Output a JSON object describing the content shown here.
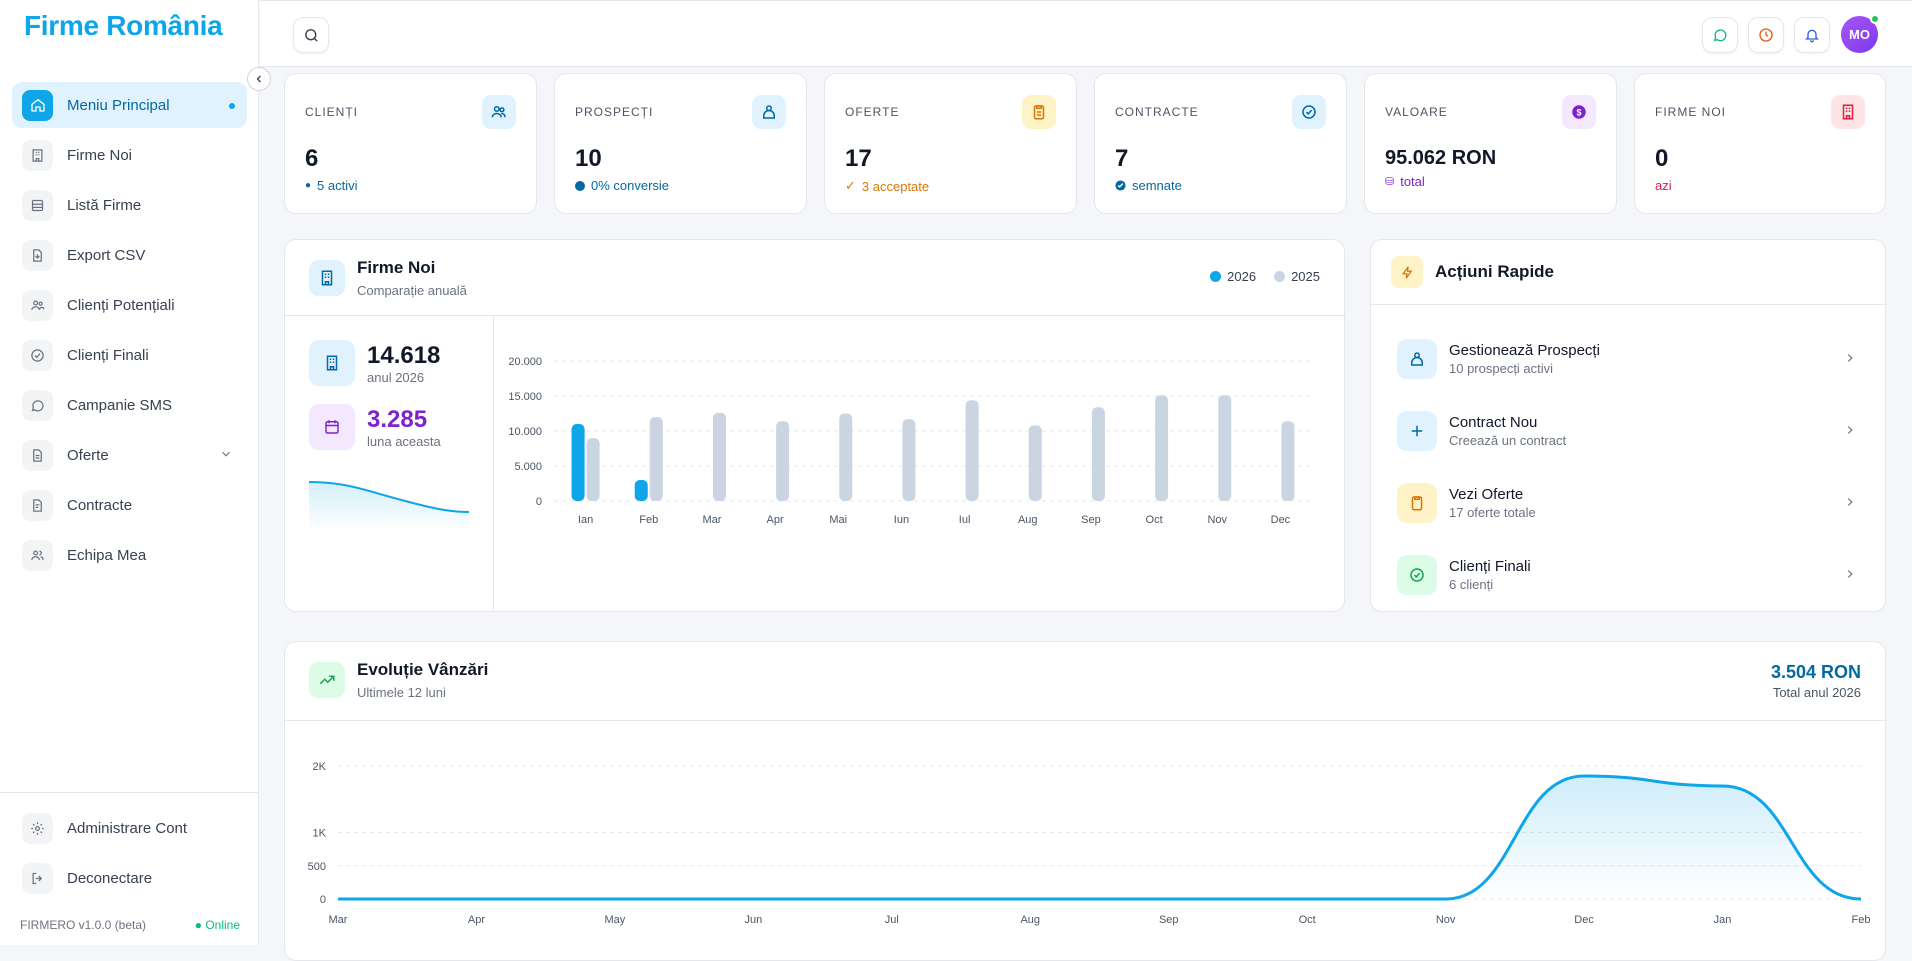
{
  "app": {
    "logo": "Firme România",
    "version": "FIRMERO v1.0.0 (beta)",
    "status": "Online"
  },
  "sidebar": {
    "items": [
      {
        "label": "Meniu Principal",
        "icon": "home-icon",
        "active": true
      },
      {
        "label": "Firme Noi",
        "icon": "building-icon"
      },
      {
        "label": "Listă Firme",
        "icon": "database-icon"
      },
      {
        "label": "Export CSV",
        "icon": "file-export-icon"
      },
      {
        "label": "Clienți Potențiali",
        "icon": "users-icon"
      },
      {
        "label": "Clienți Finali",
        "icon": "check-circle-icon"
      },
      {
        "label": "Campanie SMS",
        "icon": "chat-icon"
      },
      {
        "label": "Oferte",
        "icon": "document-icon",
        "expandable": true
      },
      {
        "label": "Contracte",
        "icon": "contract-icon"
      },
      {
        "label": "Echipa Mea",
        "icon": "team-icon"
      }
    ],
    "bottom": [
      {
        "label": "Administrare Cont",
        "icon": "gear-icon"
      },
      {
        "label": "Deconectare",
        "icon": "logout-icon"
      }
    ]
  },
  "topbar": {
    "avatar": "MO"
  },
  "stats": [
    {
      "label": "CLIENȚI",
      "value": "6",
      "sub": "5 activi",
      "color": "#0369a1",
      "icon": "users-icon"
    },
    {
      "label": "PROSPECȚI",
      "value": "10",
      "sub": "0% conversie",
      "color": "#0369a1",
      "icon": "prospect-icon"
    },
    {
      "label": "OFERTE",
      "value": "17",
      "sub": "3 acceptate",
      "color": "#d97706",
      "icon": "clipboard-icon"
    },
    {
      "label": "CONTRACTE",
      "value": "7",
      "sub": "semnate",
      "color": "#0369a1",
      "icon": "check-badge-icon"
    },
    {
      "label": "VALOARE",
      "value": "95.062 RON",
      "sub": "total",
      "color": "#7e22ce",
      "icon": "dollar-icon"
    },
    {
      "label": "FIRME NOI",
      "value": "0",
      "sub": "azi",
      "color": "#e11d48",
      "icon": "building-icon"
    }
  ],
  "firme_noi": {
    "title": "Firme Noi",
    "subtitle": "Comparație anuală",
    "total_value": "14.618",
    "total_label": "anul 2026",
    "month_value": "3.285",
    "month_label": "luna aceasta"
  },
  "quick_actions": {
    "title": "Acțiuni Rapide",
    "items": [
      {
        "title": "Gestionează Prospecți",
        "sub": "10 prospecți activi",
        "icon": "prospect-icon"
      },
      {
        "title": "Contract Nou",
        "sub": "Creează un contract",
        "icon": "plus-icon"
      },
      {
        "title": "Vezi Oferte",
        "sub": "17 oferte totale",
        "icon": "clipboard-icon"
      },
      {
        "title": "Clienți Finali",
        "sub": "6 clienți",
        "icon": "check-circle-icon"
      }
    ]
  },
  "sales": {
    "title": "Evoluție Vânzări",
    "subtitle": "Ultimele 12 luni",
    "total": "3.504 RON",
    "total_label": "Total anul 2026"
  },
  "chart_data": [
    {
      "type": "bar",
      "categories": [
        "Ian",
        "Feb",
        "Mar",
        "Apr",
        "Mai",
        "Iun",
        "Iul",
        "Aug",
        "Sep",
        "Oct",
        "Nov",
        "Dec"
      ],
      "series": [
        {
          "name": "2026",
          "values": [
            11000,
            3000,
            null,
            null,
            null,
            null,
            null,
            null,
            null,
            null,
            null,
            null
          ],
          "color": "#0ea5e9"
        },
        {
          "name": "2025",
          "values": [
            9000,
            12000,
            12600,
            11400,
            12500,
            11700,
            14400,
            10800,
            13400,
            15100,
            15100,
            11400
          ],
          "color": "#cbd5e1"
        }
      ],
      "yticks": [
        "0",
        "5.000",
        "10.000",
        "15.000",
        "20.000"
      ],
      "ylim": [
        0,
        20000
      ],
      "legend": "top-right"
    },
    {
      "type": "area",
      "categories": [
        "Mar",
        "Apr",
        "May",
        "Jun",
        "Jul",
        "Aug",
        "Sep",
        "Oct",
        "Nov",
        "Dec",
        "Jan",
        "Feb"
      ],
      "values": [
        0,
        0,
        0,
        0,
        0,
        0,
        0,
        0,
        0,
        1850,
        1700,
        0
      ],
      "yticks": [
        "0",
        "500",
        "1K",
        "2K"
      ],
      "ylim": [
        0,
        2000
      ],
      "color": "#0ea5e9"
    }
  ]
}
